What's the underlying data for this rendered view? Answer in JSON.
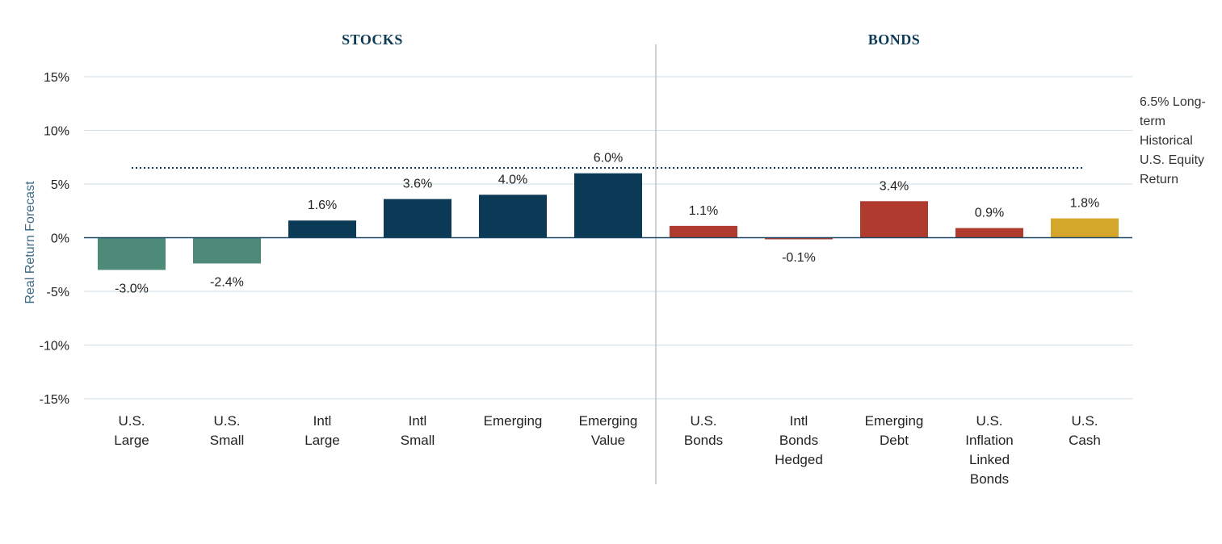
{
  "chart_data": {
    "type": "bar",
    "ylabel": "Real Return Forecast",
    "ylim": [
      -15,
      15
    ],
    "yticks": [
      15,
      10,
      5,
      0,
      -5,
      -10,
      -15
    ],
    "ytick_labels": [
      "15%",
      "10%",
      "5%",
      "0%",
      "-5%",
      "-10%",
      "-15%"
    ],
    "grid": true,
    "groups": [
      {
        "title": "STOCKS",
        "start": 0,
        "end": 5
      },
      {
        "title": "BONDS",
        "start": 6,
        "end": 10
      }
    ],
    "categories": [
      [
        "U.S.",
        "Large"
      ],
      [
        "U.S.",
        "Small"
      ],
      [
        "Intl",
        "Large"
      ],
      [
        "Intl",
        "Small"
      ],
      [
        "Emerging"
      ],
      [
        "Emerging",
        "Value"
      ],
      [
        "U.S.",
        "Bonds"
      ],
      [
        "Intl",
        "Bonds",
        "Hedged"
      ],
      [
        "Emerging",
        "Debt"
      ],
      [
        "U.S.",
        "Inflation",
        "Linked",
        "Bonds"
      ],
      [
        "U.S.",
        "Cash"
      ]
    ],
    "values": [
      -3.0,
      -2.4,
      1.6,
      3.6,
      4.0,
      6.0,
      1.1,
      -0.1,
      3.4,
      0.9,
      1.8
    ],
    "value_labels": [
      "-3.0%",
      "-2.4%",
      "1.6%",
      "3.6%",
      "4.0%",
      "6.0%",
      "1.1%",
      "-0.1%",
      "3.4%",
      "0.9%",
      "1.8%"
    ],
    "colors": [
      "#4d8b78",
      "#4d8b78",
      "#0b3a57",
      "#0b3a57",
      "#0b3a57",
      "#0b3a57",
      "#b03a2e",
      "#b03a2e",
      "#b03a2e",
      "#b03a2e",
      "#d4a62a"
    ],
    "reference_line": {
      "value": 6.5,
      "label_lines": [
        "6.5% Long-",
        "term",
        "Historical",
        "U.S. Equity",
        "Return"
      ],
      "style": "dotted",
      "color": "#0b3a57"
    }
  }
}
